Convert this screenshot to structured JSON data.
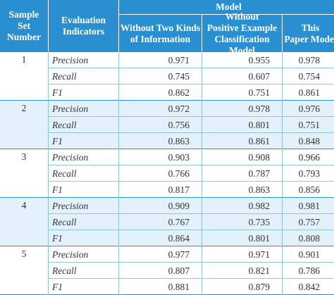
{
  "header": {
    "sample_set": "Sample\nSet Number",
    "eval_ind": "Evaluation\nIndicators",
    "model": "Model",
    "col1": "Without Two Kinds\nof Information",
    "col2": "Without\nPositive Example\nClassification Model",
    "col3": "This\nPaper Model"
  },
  "groups": [
    {
      "set": "1",
      "rows": [
        {
          "ind": "Precision",
          "v1": "0.971",
          "v2": "0.955",
          "v3": "0.978"
        },
        {
          "ind": "Recall",
          "v1": "0.745",
          "v2": "0.607",
          "v3": "0.754"
        },
        {
          "ind": "F1",
          "v1": "0.862",
          "v2": "0.751",
          "v3": "0.861"
        }
      ]
    },
    {
      "set": "2",
      "rows": [
        {
          "ind": "Precision",
          "v1": "0.972",
          "v2": "0.978",
          "v3": "0.976"
        },
        {
          "ind": "Recall",
          "v1": "0.756",
          "v2": "0.801",
          "v3": "0.751"
        },
        {
          "ind": "F1",
          "v1": "0.863",
          "v2": "0.861",
          "v3": "0.848"
        }
      ]
    },
    {
      "set": "3",
      "rows": [
        {
          "ind": "Precision",
          "v1": "0.903",
          "v2": "0.908",
          "v3": "0.966"
        },
        {
          "ind": "Recall",
          "v1": "0.766",
          "v2": "0.787",
          "v3": "0.793"
        },
        {
          "ind": "F1",
          "v1": "0.817",
          "v2": "0.863",
          "v3": "0.856"
        }
      ]
    },
    {
      "set": "4",
      "rows": [
        {
          "ind": "Precision",
          "v1": "0.909",
          "v2": "0.982",
          "v3": "0.981"
        },
        {
          "ind": "Recall",
          "v1": "0.767",
          "v2": "0.735",
          "v3": "0.757"
        },
        {
          "ind": "F1",
          "v1": "0.864",
          "v2": "0.801",
          "v3": "0.808"
        }
      ]
    },
    {
      "set": "5",
      "rows": [
        {
          "ind": "Precision",
          "v1": "0.977",
          "v2": "0.971",
          "v3": "0.901"
        },
        {
          "ind": "Recall",
          "v1": "0.807",
          "v2": "0.821",
          "v3": "0.786"
        },
        {
          "ind": "F1",
          "v1": "0.881",
          "v2": "0.879",
          "v3": "0.842"
        }
      ]
    }
  ],
  "colors": {
    "header": "#2a8fd0",
    "shade": "#e3f1fb",
    "rule": "#8fc3e6"
  }
}
